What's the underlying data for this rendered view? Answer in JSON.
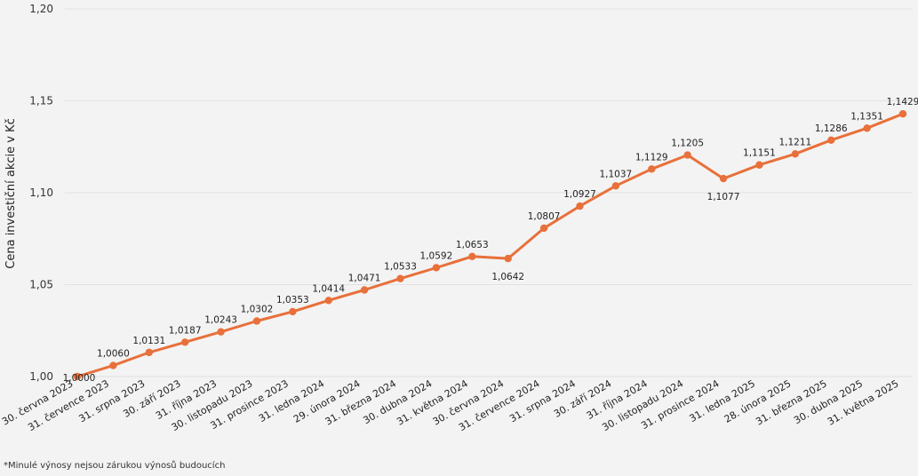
{
  "chart_data": {
    "type": "line",
    "ylabel": "Cena investiční akcie v Kč",
    "xlabel": "",
    "ylim": [
      1.0,
      1.2
    ],
    "yticks": [
      "1,00",
      "1,05",
      "1,10",
      "1,15",
      "1,20"
    ],
    "ytick_values": [
      1.0,
      1.05,
      1.1,
      1.15,
      1.2
    ],
    "grid": true,
    "series_color": "#e8703a",
    "categories": [
      "30. června 2023",
      "31. července 2023",
      "31. srpna 2023",
      "30. září 2023",
      "31. října 2023",
      "30. listopadu 2023",
      "31. prosince 2023",
      "31. ledna 2024",
      "29. února 2024",
      "31. března 2024",
      "30. dubna 2024",
      "31. května 2024",
      "30. června 2024",
      "31. července 2024",
      "31. srpna 2024",
      "30. září 2024",
      "31. října 2024",
      "30. listopadu 2024",
      "31. prosince 2024",
      "31. ledna 2025",
      "28. února 2025",
      "31. března 2025",
      "30. dubna 2025",
      "31. května 2025"
    ],
    "values": [
      1.0,
      1.006,
      1.0131,
      1.0187,
      1.0243,
      1.0302,
      1.0353,
      1.0414,
      1.0471,
      1.0533,
      1.0592,
      1.0653,
      1.0642,
      1.0807,
      1.0927,
      1.1037,
      1.1129,
      1.1205,
      1.1077,
      1.1151,
      1.1211,
      1.1286,
      1.1351,
      1.1429
    ],
    "value_labels": [
      "1,0000",
      "1,0060",
      "1,0131",
      "1,0187",
      "1,0243",
      "1,0302",
      "1,0353",
      "1,0414",
      "1,0471",
      "1,0533",
      "1,0592",
      "1,0653",
      "1,0642",
      "1,0807",
      "1,0927",
      "1,1037",
      "1,1129",
      "1,1205",
      "1,1077",
      "1,1151",
      "1,1211",
      "1,1286",
      "1,1351",
      "1,1429"
    ],
    "label_below": [
      12,
      18
    ]
  },
  "footnote": "*Minulé výnosy nejsou zárukou výnosů budoucích"
}
